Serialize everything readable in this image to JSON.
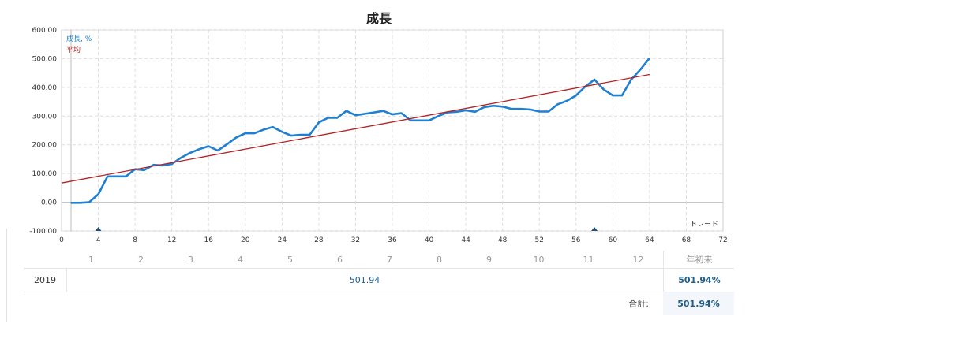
{
  "chart_data": {
    "type": "line",
    "title": "成長",
    "xlabel": "トレード",
    "ylabel": "",
    "xlim": [
      0,
      72
    ],
    "ylim": [
      -100,
      600
    ],
    "x_ticks": [
      0,
      4,
      8,
      12,
      16,
      20,
      24,
      28,
      32,
      36,
      40,
      44,
      48,
      52,
      56,
      60,
      64,
      68,
      72
    ],
    "y_ticks": [
      "-100.00",
      "0.00",
      "100.00",
      "200.00",
      "300.00",
      "400.00",
      "500.00",
      "600.00"
    ],
    "grid": true,
    "legend_position": "top-left",
    "markers_x": [
      4,
      58
    ],
    "series": [
      {
        "name": "成長, %",
        "color": "#1f7fd0",
        "x": [
          1,
          2,
          3,
          4,
          5,
          6,
          7,
          8,
          9,
          10,
          11,
          12,
          13,
          14,
          15,
          16,
          17,
          18,
          19,
          20,
          21,
          22,
          23,
          24,
          25,
          26,
          27,
          28,
          29,
          30,
          31,
          32,
          33,
          34,
          35,
          36,
          37,
          38,
          39,
          40,
          41,
          42,
          43,
          44,
          45,
          46,
          47,
          48,
          49,
          50,
          51,
          52,
          53,
          54,
          55,
          56,
          57,
          58,
          59,
          60,
          61,
          62,
          63,
          64
        ],
        "values": [
          -2,
          -2,
          0,
          28,
          90,
          90,
          90,
          115,
          112,
          130,
          128,
          133,
          155,
          172,
          185,
          195,
          180,
          202,
          225,
          240,
          240,
          253,
          262,
          245,
          232,
          235,
          235,
          278,
          294,
          294,
          318,
          303,
          308,
          313,
          318,
          306,
          310,
          285,
          285,
          285,
          300,
          313,
          315,
          320,
          315,
          331,
          336,
          333,
          325,
          325,
          323,
          316,
          316,
          341,
          353,
          372,
          403,
          427,
          393,
          372,
          372,
          427,
          462,
          502
        ]
      },
      {
        "name": "平均",
        "color": "#b22222",
        "x": [
          0,
          64
        ],
        "values": [
          67,
          445
        ]
      }
    ]
  },
  "summary": {
    "months": [
      "1",
      "2",
      "3",
      "4",
      "5",
      "6",
      "7",
      "8",
      "9",
      "10",
      "11",
      "12"
    ],
    "ytd_header": "年初来",
    "year": "2019",
    "year_value": "501.94",
    "year_ytd": "501.94%",
    "total_label": "合計:",
    "total_value": "501.94%"
  }
}
